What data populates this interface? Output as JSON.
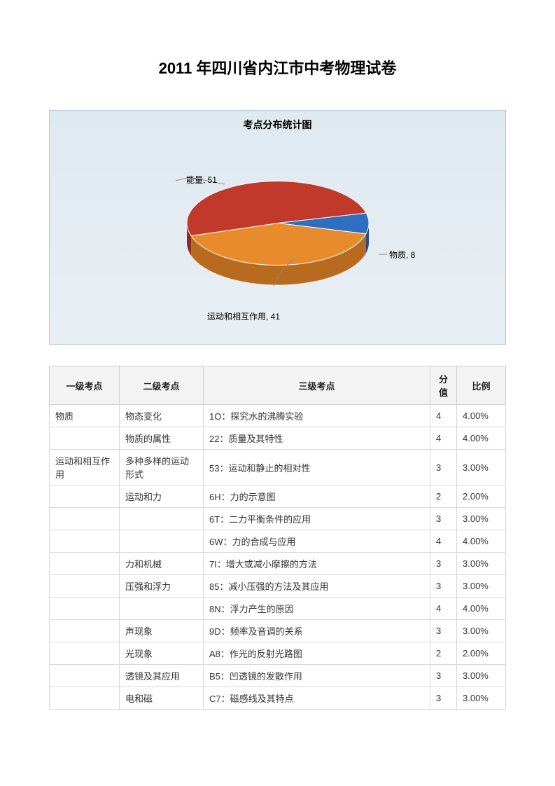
{
  "page_title": "2011 年四川省内江市中考物理试卷",
  "chart": {
    "type": "pie",
    "title": "考点分布统计图",
    "background_gradient": [
      "#dfe9f0",
      "#e8eff4"
    ],
    "border_color": "#b8c8d6",
    "label_fontsize": 12,
    "slices": [
      {
        "label": "能量, 51",
        "value": 51,
        "color_top": "#c0392b",
        "color_side": "#8e2a20"
      },
      {
        "label": "运动和相互作用, 41",
        "value": 41,
        "color_top": "#e88b2d",
        "color_side": "#b86a1e"
      },
      {
        "label": "物质, 8",
        "value": 8,
        "color_top": "#2e6fc1",
        "color_side": "#1f4f8e"
      }
    ]
  },
  "table": {
    "columns": [
      "一级考点",
      "二级考点",
      "三级考点",
      "分值",
      "比例"
    ],
    "rows": [
      [
        "物质",
        "物态变化",
        "1O：探究水的沸腾实验",
        "4",
        "4.00%"
      ],
      [
        "",
        "物质的属性",
        "22：质量及其特性",
        "4",
        "4.00%"
      ],
      [
        "运动和相互作用",
        "多种多样的运动形式",
        "53：运动和静止的相对性",
        "3",
        "3.00%"
      ],
      [
        "",
        "运动和力",
        "6H：力的示意图",
        "2",
        "2.00%"
      ],
      [
        "",
        "",
        "6T：二力平衡条件的应用",
        "3",
        "3.00%"
      ],
      [
        "",
        "",
        "6W：力的合成与应用",
        "4",
        "4.00%"
      ],
      [
        "",
        "力和机械",
        "7I：增大或减小摩擦的方法",
        "3",
        "3.00%"
      ],
      [
        "",
        "压强和浮力",
        "85：减小压强的方法及其应用",
        "3",
        "3.00%"
      ],
      [
        "",
        "",
        "8N：浮力产生的原因",
        "4",
        "4.00%"
      ],
      [
        "",
        "声现象",
        "9D：频率及音调的关系",
        "3",
        "3.00%"
      ],
      [
        "",
        "光现象",
        "A8：作光的反射光路图",
        "2",
        "2.00%"
      ],
      [
        "",
        "透镜及其应用",
        "B5：凹透镜的发散作用",
        "3",
        "3.00%"
      ],
      [
        "",
        "电和磁",
        "C7：磁感线及其特点",
        "3",
        "3.00%"
      ]
    ]
  }
}
